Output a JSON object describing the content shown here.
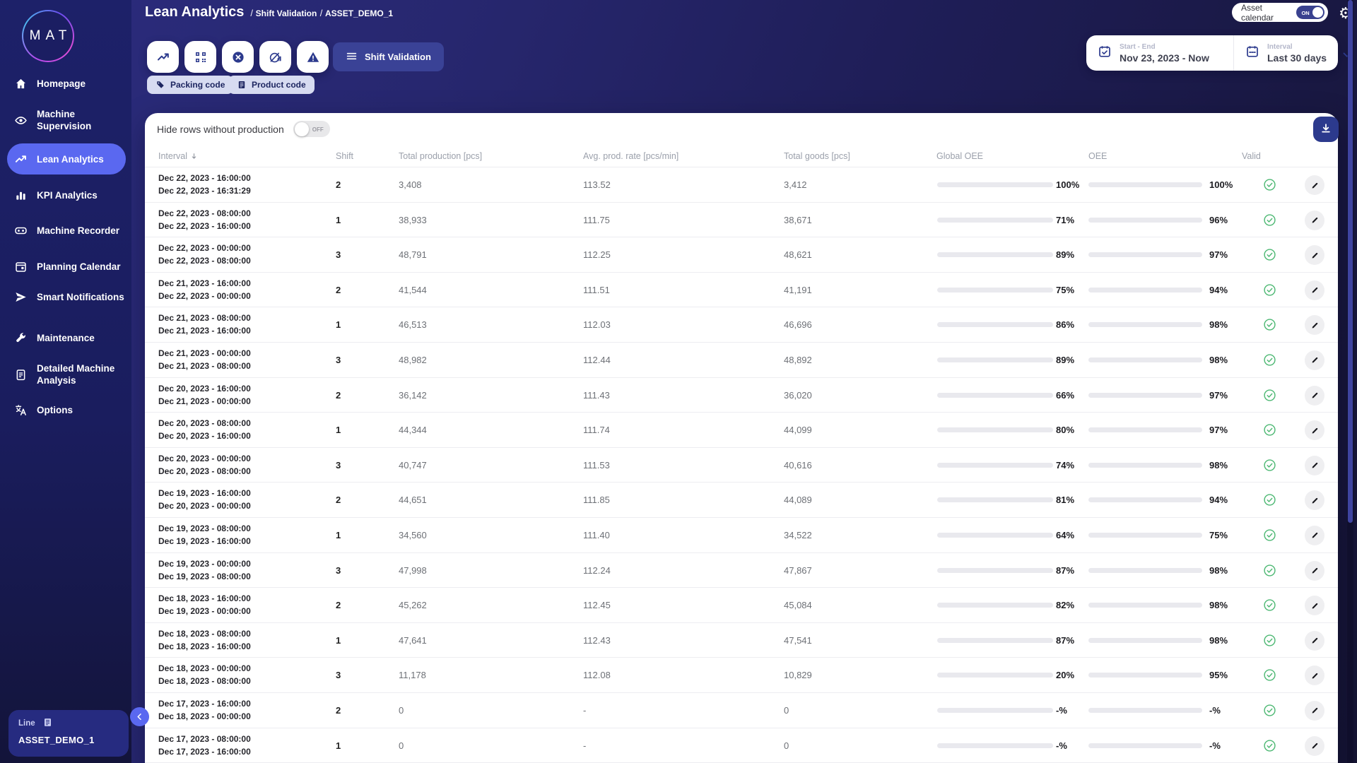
{
  "brand": {
    "logo_text": "MAT"
  },
  "header": {
    "title": "Lean Analytics",
    "breadcrumbs": [
      "Shift Validation",
      "ASSET_DEMO_1"
    ],
    "asset_calendar": {
      "label": "Asset calendar",
      "state": "ON"
    }
  },
  "sidebar": {
    "items": [
      {
        "label": "Homepage",
        "icon": "home",
        "active": false
      },
      {
        "label": "Machine Supervision",
        "icon": "eye",
        "active": false
      },
      {
        "label": "Lean Analytics",
        "icon": "trend",
        "active": true
      },
      {
        "label": "KPI Analytics",
        "icon": "bars",
        "active": false
      },
      {
        "label": "Machine Recorder",
        "icon": "recorder",
        "active": false
      },
      {
        "label": "Planning Calendar",
        "icon": "calendar",
        "active": false
      },
      {
        "label": "Smart Notifications",
        "icon": "send",
        "active": false
      },
      {
        "label": "Maintenance",
        "icon": "wrench",
        "active": false
      },
      {
        "label": "Detailed Machine Analysis",
        "icon": "clipboard",
        "active": false
      },
      {
        "label": "Options",
        "icon": "translate",
        "active": false
      }
    ],
    "footer": {
      "type_label": "Line",
      "asset_name": "ASSET_DEMO_1"
    }
  },
  "toolbar": {
    "icon_buttons": [
      {
        "name": "trend-chart-button",
        "icon": "trend"
      },
      {
        "name": "code-grid-button",
        "icon": "qr"
      },
      {
        "name": "cancel-circle-button",
        "icon": "cancel"
      },
      {
        "name": "gauge-report-button",
        "icon": "gauge"
      },
      {
        "name": "warning-button",
        "icon": "warning"
      }
    ],
    "active_view": "Shift Validation",
    "chips": [
      {
        "label": "Packing code",
        "icon": "tag"
      },
      {
        "label": "Product code",
        "icon": "doclist"
      }
    ]
  },
  "date_filter": {
    "start_end_label": "Start - End",
    "start_end_value": "Nov 23, 2023 - Now",
    "interval_label": "Interval",
    "interval_value": "Last 30 days"
  },
  "table": {
    "hide_rows_label": "Hide rows without production",
    "hide_rows_state": "OFF",
    "columns": [
      "Interval",
      "Shift",
      "Total production [pcs]",
      "Avg. prod. rate [pcs/min]",
      "Total goods [pcs]",
      "Global OEE",
      "OEE",
      "Valid"
    ],
    "empty_percent": "-%",
    "rows": [
      {
        "start": "Dec 22, 2023 - 16:00:00",
        "end": "Dec 22, 2023 - 16:31:29",
        "shift": "2",
        "production": "3,408",
        "rate": "113.52",
        "goods": "3,412",
        "global_oee": 100,
        "oee": 100
      },
      {
        "start": "Dec 22, 2023 - 08:00:00",
        "end": "Dec 22, 2023 - 16:00:00",
        "shift": "1",
        "production": "38,933",
        "rate": "111.75",
        "goods": "38,671",
        "global_oee": 71,
        "oee": 96
      },
      {
        "start": "Dec 22, 2023 - 00:00:00",
        "end": "Dec 22, 2023 - 08:00:00",
        "shift": "3",
        "production": "48,791",
        "rate": "112.25",
        "goods": "48,621",
        "global_oee": 89,
        "oee": 97
      },
      {
        "start": "Dec 21, 2023 - 16:00:00",
        "end": "Dec 22, 2023 - 00:00:00",
        "shift": "2",
        "production": "41,544",
        "rate": "111.51",
        "goods": "41,191",
        "global_oee": 75,
        "oee": 94
      },
      {
        "start": "Dec 21, 2023 - 08:00:00",
        "end": "Dec 21, 2023 - 16:00:00",
        "shift": "1",
        "production": "46,513",
        "rate": "112.03",
        "goods": "46,696",
        "global_oee": 86,
        "oee": 98
      },
      {
        "start": "Dec 21, 2023 - 00:00:00",
        "end": "Dec 21, 2023 - 08:00:00",
        "shift": "3",
        "production": "48,982",
        "rate": "112.44",
        "goods": "48,892",
        "global_oee": 89,
        "oee": 98
      },
      {
        "start": "Dec 20, 2023 - 16:00:00",
        "end": "Dec 21, 2023 - 00:00:00",
        "shift": "2",
        "production": "36,142",
        "rate": "111.43",
        "goods": "36,020",
        "global_oee": 66,
        "oee": 97
      },
      {
        "start": "Dec 20, 2023 - 08:00:00",
        "end": "Dec 20, 2023 - 16:00:00",
        "shift": "1",
        "production": "44,344",
        "rate": "111.74",
        "goods": "44,099",
        "global_oee": 80,
        "oee": 97
      },
      {
        "start": "Dec 20, 2023 - 00:00:00",
        "end": "Dec 20, 2023 - 08:00:00",
        "shift": "3",
        "production": "40,747",
        "rate": "111.53",
        "goods": "40,616",
        "global_oee": 74,
        "oee": 98
      },
      {
        "start": "Dec 19, 2023 - 16:00:00",
        "end": "Dec 20, 2023 - 00:00:00",
        "shift": "2",
        "production": "44,651",
        "rate": "111.85",
        "goods": "44,089",
        "global_oee": 81,
        "oee": 94
      },
      {
        "start": "Dec 19, 2023 - 08:00:00",
        "end": "Dec 19, 2023 - 16:00:00",
        "shift": "1",
        "production": "34,560",
        "rate": "111.40",
        "goods": "34,522",
        "global_oee": 64,
        "oee": 75
      },
      {
        "start": "Dec 19, 2023 - 00:00:00",
        "end": "Dec 19, 2023 - 08:00:00",
        "shift": "3",
        "production": "47,998",
        "rate": "112.24",
        "goods": "47,867",
        "global_oee": 87,
        "oee": 98
      },
      {
        "start": "Dec 18, 2023 - 16:00:00",
        "end": "Dec 19, 2023 - 00:00:00",
        "shift": "2",
        "production": "45,262",
        "rate": "112.45",
        "goods": "45,084",
        "global_oee": 82,
        "oee": 98
      },
      {
        "start": "Dec 18, 2023 - 08:00:00",
        "end": "Dec 18, 2023 - 16:00:00",
        "shift": "1",
        "production": "47,641",
        "rate": "112.43",
        "goods": "47,541",
        "global_oee": 87,
        "oee": 98
      },
      {
        "start": "Dec 18, 2023 - 00:00:00",
        "end": "Dec 18, 2023 - 08:00:00",
        "shift": "3",
        "production": "11,178",
        "rate": "112.08",
        "goods": "10,829",
        "global_oee": 20,
        "oee": 95
      },
      {
        "start": "Dec 17, 2023 - 16:00:00",
        "end": "Dec 18, 2023 - 00:00:00",
        "shift": "2",
        "production": "0",
        "rate": "-",
        "goods": "0",
        "global_oee": null,
        "oee": null
      },
      {
        "start": "Dec 17, 2023 - 08:00:00",
        "end": "Dec 17, 2023 - 16:00:00",
        "shift": "1",
        "production": "0",
        "rate": "-",
        "goods": "0",
        "global_oee": null,
        "oee": null
      }
    ]
  },
  "colors": {
    "accent": "#5a68f0",
    "dark_blue": "#2c3a8d",
    "bar_high": "#54d690",
    "bar_green": "#7eda5f",
    "bar_mid": "#9ae055",
    "bar_lime": "#b7e64f",
    "bar_yellow": "#d2ee47",
    "bar_low": "#f0854f",
    "bar_track": "#e9e9ee",
    "valid_green": "#4db873"
  }
}
